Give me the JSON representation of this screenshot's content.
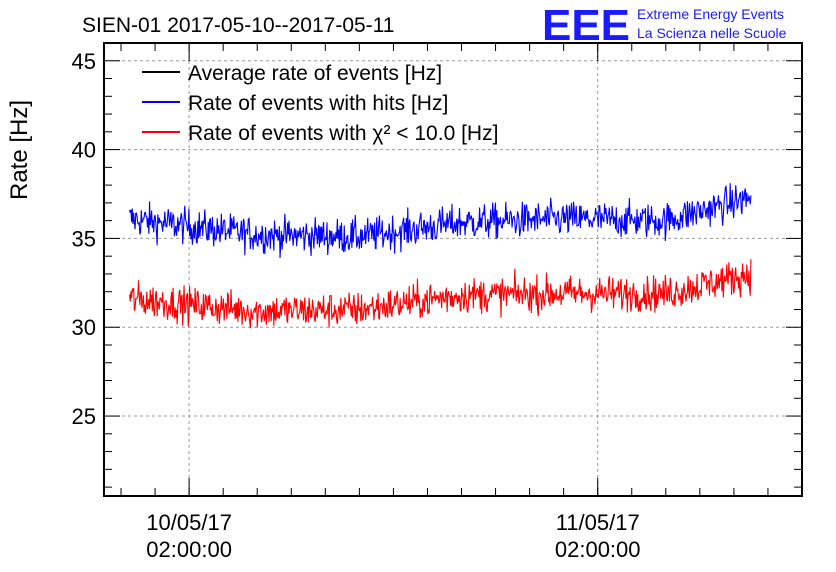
{
  "chart_data": {
    "type": "line",
    "title": "SIEN-01 2017-05-10--2017-05-11",
    "ylabel": "Rate [Hz]",
    "xlabel": "",
    "ylim": [
      20.5,
      46
    ],
    "yticks": [
      25,
      30,
      35,
      40,
      45
    ],
    "grid": true,
    "legend_position": "top-left",
    "x_ticks": [
      {
        "label_line1": "10/05/17",
        "label_line2": "02:00:00",
        "value": "2017-05-10 02:00:00"
      },
      {
        "label_line1": "11/05/17",
        "label_line2": "02:00:00",
        "value": "2017-05-11 02:00:00"
      }
    ],
    "xlim": [
      "2017-05-09 21:00:00",
      "2017-05-11 14:00:00"
    ],
    "series": [
      {
        "name": "Average rate of events [Hz]",
        "color": "#000000",
        "values": []
      },
      {
        "name": "Rate of events with hits [Hz]",
        "color": "#0000ff",
        "x_start": "2017-05-09 22:30:00",
        "x_end": "2017-05-11 11:00:00",
        "trend": [
          {
            "x": "2017-05-09 22:30:00",
            "y": 36.1
          },
          {
            "x": "2017-05-10 06:00:00",
            "y": 35.2
          },
          {
            "x": "2017-05-10 12:00:00",
            "y": 35.1
          },
          {
            "x": "2017-05-10 18:00:00",
            "y": 35.9
          },
          {
            "x": "2017-05-11 00:00:00",
            "y": 36.1
          },
          {
            "x": "2017-05-11 06:00:00",
            "y": 36.0
          },
          {
            "x": "2017-05-11 11:00:00",
            "y": 37.3
          }
        ]
      },
      {
        "name": "Rate of events with χ² < 10.0 [Hz]",
        "color": "#ff0000",
        "x_start": "2017-05-09 22:30:00",
        "x_end": "2017-05-11 11:00:00",
        "trend": [
          {
            "x": "2017-05-09 22:30:00",
            "y": 31.6
          },
          {
            "x": "2017-05-10 06:00:00",
            "y": 30.9
          },
          {
            "x": "2017-05-10 12:00:00",
            "y": 31.0
          },
          {
            "x": "2017-05-10 18:00:00",
            "y": 31.8
          },
          {
            "x": "2017-05-11 00:00:00",
            "y": 31.9
          },
          {
            "x": "2017-05-11 06:00:00",
            "y": 31.9
          },
          {
            "x": "2017-05-11 11:00:00",
            "y": 33.0
          }
        ]
      }
    ]
  },
  "logo": {
    "mark": "EEE",
    "line1": "Extreme Energy Events",
    "line2": "La Scienza nelle Scuole"
  }
}
